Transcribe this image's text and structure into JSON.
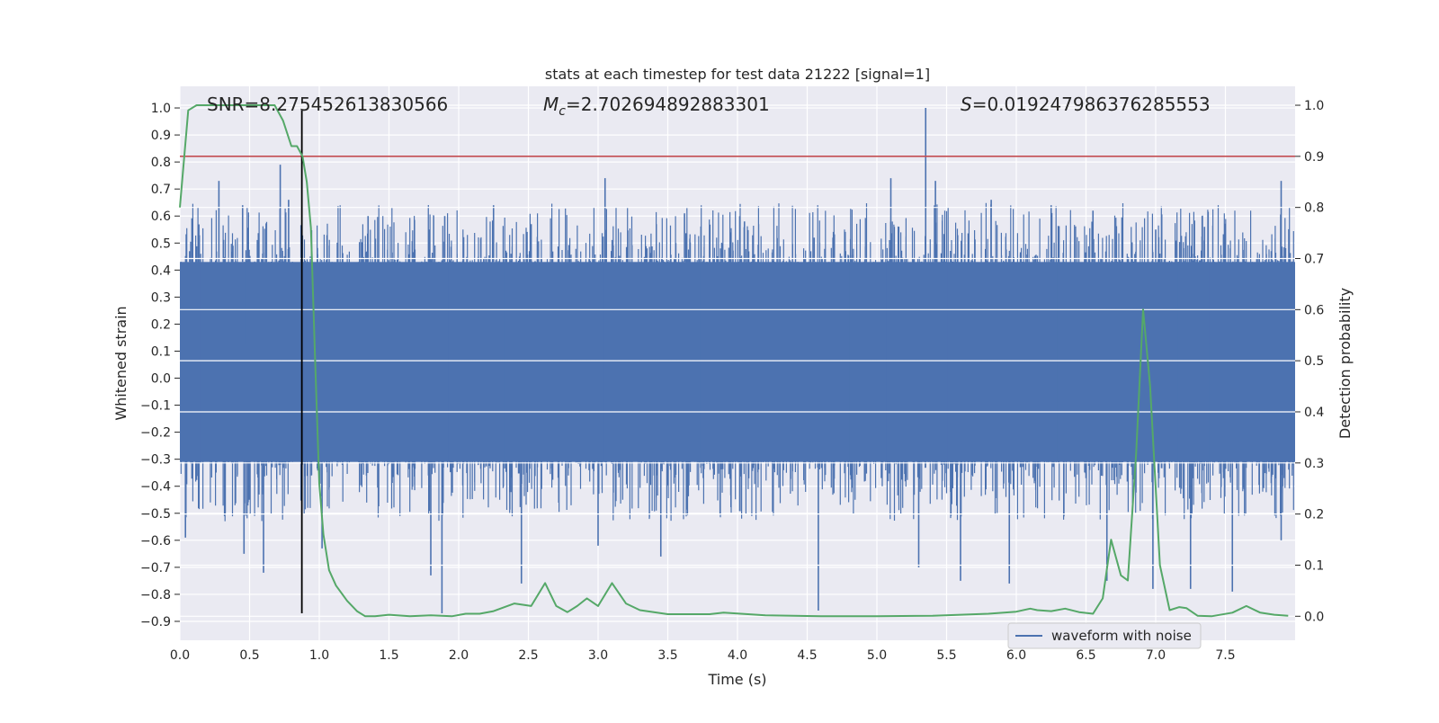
{
  "chart_data": {
    "type": "line",
    "title": "stats at each timestep for test data 21222 [signal=1]",
    "xlabel": "Time (s)",
    "ylabel": "Whitened strain",
    "y2label": "Detection probability",
    "xlim": [
      0,
      8
    ],
    "ylim": [
      -0.97,
      1.08
    ],
    "y2lim": [
      -0.047,
      1.037
    ],
    "xticks": [
      0.0,
      0.5,
      1.0,
      1.5,
      2.0,
      2.5,
      3.0,
      3.5,
      4.0,
      4.5,
      5.0,
      5.5,
      6.0,
      6.5,
      7.0,
      7.5
    ],
    "xtick_labels": [
      "0.0",
      "0.5",
      "1.0",
      "1.5",
      "2.0",
      "2.5",
      "3.0",
      "3.5",
      "4.0",
      "4.5",
      "5.0",
      "5.5",
      "6.0",
      "6.5",
      "7.0",
      "7.5"
    ],
    "yticks": [
      1.0,
      0.9,
      0.8,
      0.7,
      0.6,
      0.5,
      0.4,
      0.3,
      0.2,
      0.1,
      0.0,
      -0.1,
      -0.2,
      -0.3,
      -0.4,
      -0.5,
      -0.6,
      -0.7,
      -0.8,
      -0.9
    ],
    "ytick_labels": [
      "1.0",
      "0.9",
      "0.8",
      "0.7",
      "0.6",
      "0.5",
      "0.4",
      "0.3",
      "0.2",
      "0.1",
      "0.0",
      "−0.1",
      "−0.2",
      "−0.3",
      "−0.4",
      "−0.5",
      "−0.6",
      "−0.7",
      "−0.8",
      "−0.9"
    ],
    "y2ticks": [
      1.0,
      0.9,
      0.8,
      0.7,
      0.6,
      0.5,
      0.4,
      0.3,
      0.2,
      0.1,
      0.0
    ],
    "y2tick_labels": [
      "1.0",
      "0.9",
      "0.8",
      "0.7",
      "0.6",
      "0.5",
      "0.4",
      "0.3",
      "0.2",
      "0.1",
      "0.0"
    ],
    "annotations": {
      "snr": "SNR=8.275452613830566",
      "mc_symbol": "M",
      "mc_sub": "c",
      "mc_value": "=2.702694892883301",
      "s_symbol": "S",
      "s_value": "=0.019247986376285553"
    },
    "legend": {
      "label": "waveform with noise",
      "position": "lower-right"
    },
    "grid": true,
    "series": [
      {
        "name": "waveform with noise",
        "axis": "left",
        "color": "#4c72b0",
        "kind": "noise-band",
        "band_extent": [
          -0.31,
          0.43
        ],
        "peaks": [
          {
            "x": 0.07,
            "y": 0.47
          },
          {
            "x": 0.28,
            "y": 0.73
          },
          {
            "x": 0.45,
            "y": 0.64
          },
          {
            "x": 0.72,
            "y": 0.79
          },
          {
            "x": 0.78,
            "y": 0.66
          },
          {
            "x": 1.35,
            "y": 0.6
          },
          {
            "x": 1.9,
            "y": 0.6
          },
          {
            "x": 2.25,
            "y": 0.64
          },
          {
            "x": 2.52,
            "y": 0.57
          },
          {
            "x": 3.05,
            "y": 0.74
          },
          {
            "x": 3.62,
            "y": 0.61
          },
          {
            "x": 4.05,
            "y": 0.58
          },
          {
            "x": 4.55,
            "y": 0.52
          },
          {
            "x": 5.1,
            "y": 0.74
          },
          {
            "x": 5.35,
            "y": 1.0
          },
          {
            "x": 5.42,
            "y": 0.73
          },
          {
            "x": 5.82,
            "y": 0.66
          },
          {
            "x": 6.25,
            "y": 0.64
          },
          {
            "x": 6.55,
            "y": 0.62
          },
          {
            "x": 7.0,
            "y": 0.55
          },
          {
            "x": 7.35,
            "y": 0.56
          },
          {
            "x": 7.9,
            "y": 0.73
          }
        ],
        "troughs": [
          {
            "x": 0.04,
            "y": -0.59
          },
          {
            "x": 0.46,
            "y": -0.65
          },
          {
            "x": 0.6,
            "y": -0.72
          },
          {
            "x": 1.02,
            "y": -0.63
          },
          {
            "x": 1.8,
            "y": -0.73
          },
          {
            "x": 1.88,
            "y": -0.87
          },
          {
            "x": 2.45,
            "y": -0.76
          },
          {
            "x": 3.0,
            "y": -0.62
          },
          {
            "x": 3.45,
            "y": -0.66
          },
          {
            "x": 4.58,
            "y": -0.86
          },
          {
            "x": 5.3,
            "y": -0.7
          },
          {
            "x": 5.6,
            "y": -0.75
          },
          {
            "x": 5.95,
            "y": -0.76
          },
          {
            "x": 6.65,
            "y": -0.75
          },
          {
            "x": 6.98,
            "y": -0.78
          },
          {
            "x": 7.25,
            "y": -0.78
          },
          {
            "x": 7.55,
            "y": -0.79
          },
          {
            "x": 7.9,
            "y": -0.6
          }
        ]
      },
      {
        "name": "",
        "axis": "right",
        "color": "#55a868",
        "x": [
          0.0,
          0.06,
          0.12,
          0.2,
          0.4,
          0.55,
          0.68,
          0.74,
          0.8,
          0.84,
          0.88,
          0.91,
          0.94,
          0.97,
          1.0,
          1.03,
          1.07,
          1.12,
          1.2,
          1.27,
          1.33,
          1.4,
          1.5,
          1.65,
          1.8,
          1.95,
          2.05,
          2.15,
          2.25,
          2.4,
          2.52,
          2.62,
          2.7,
          2.78,
          2.85,
          2.92,
          3.0,
          3.1,
          3.2,
          3.3,
          3.5,
          3.8,
          3.9,
          4.2,
          4.6,
          5.0,
          5.4,
          5.8,
          6.0,
          6.1,
          6.15,
          6.25,
          6.35,
          6.45,
          6.55,
          6.62,
          6.68,
          6.75,
          6.8,
          6.86,
          6.91,
          6.96,
          7.03,
          7.1,
          7.17,
          7.22,
          7.3,
          7.4,
          7.55,
          7.65,
          7.75,
          7.85,
          7.95
        ],
        "y": [
          0.8,
          0.99,
          1.0,
          1.0,
          1.0,
          1.0,
          1.0,
          0.97,
          0.92,
          0.92,
          0.9,
          0.85,
          0.76,
          0.5,
          0.26,
          0.16,
          0.09,
          0.06,
          0.03,
          0.01,
          0.0,
          0.0,
          0.003,
          0.0,
          0.002,
          0.0,
          0.005,
          0.005,
          0.01,
          0.025,
          0.02,
          0.065,
          0.02,
          0.008,
          0.02,
          0.035,
          0.02,
          0.065,
          0.025,
          0.012,
          0.004,
          0.004,
          0.007,
          0.002,
          0.0,
          0.0,
          0.001,
          0.005,
          0.009,
          0.015,
          0.012,
          0.01,
          0.015,
          0.008,
          0.005,
          0.035,
          0.15,
          0.08,
          0.07,
          0.32,
          0.6,
          0.45,
          0.1,
          0.012,
          0.018,
          0.016,
          0.001,
          0.0,
          0.007,
          0.02,
          0.007,
          0.003,
          0.001
        ]
      },
      {
        "name": "",
        "axis": "right",
        "color": "#c44e52",
        "kind": "hline",
        "y": 0.9
      },
      {
        "name": "",
        "axis": "left",
        "color": "#000000",
        "kind": "vline",
        "x": 0.875,
        "y_range": [
          -0.87,
          0.99
        ]
      }
    ]
  }
}
